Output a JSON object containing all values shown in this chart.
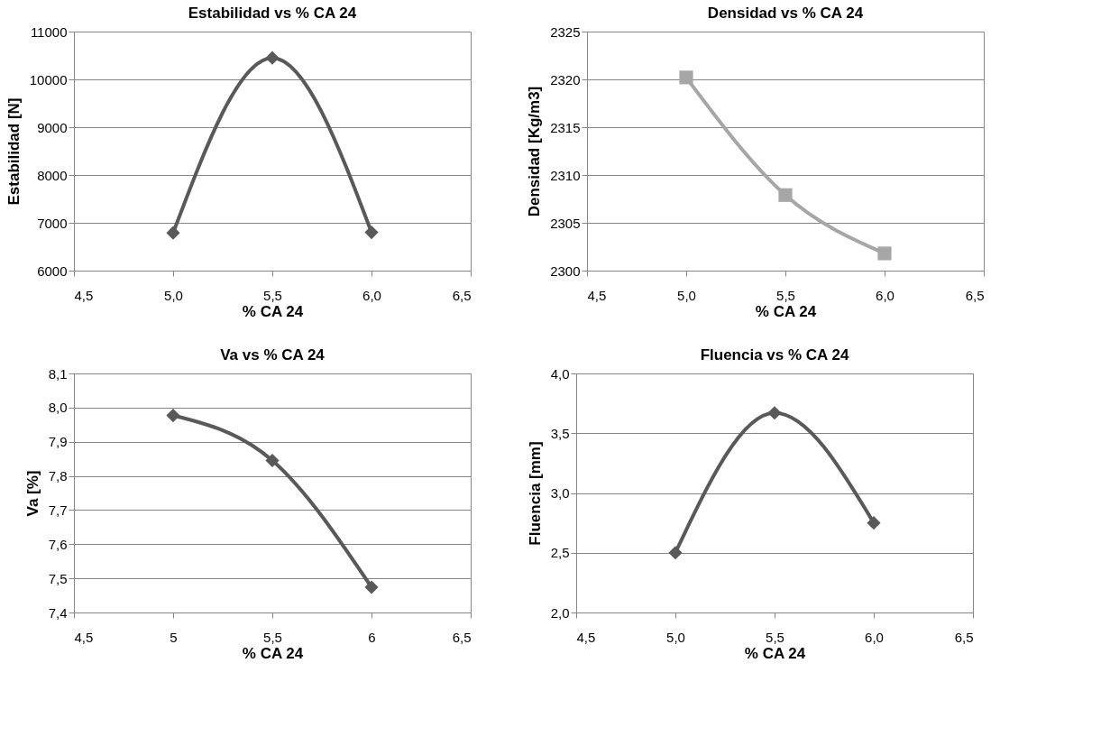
{
  "chart_data": [
    {
      "type": "line",
      "title": "Estabilidad vs % CA 24",
      "xlabel": "% CA 24",
      "ylabel": "Estabilidad [N]",
      "x": [
        5.0,
        5.5,
        6.0
      ],
      "series": [
        {
          "color": "#595959",
          "values": [
            6790,
            10450,
            6800
          ]
        }
      ],
      "xlim": [
        4.5,
        6.5
      ],
      "xticks": [
        {
          "value": 4.5,
          "label": "4,5"
        },
        {
          "value": 5.0,
          "label": "5,0"
        },
        {
          "value": 5.5,
          "label": "5,5"
        },
        {
          "value": 6.0,
          "label": "6,0"
        },
        {
          "value": 6.5,
          "label": "6,5"
        }
      ],
      "ylim": [
        6000,
        11000
      ],
      "yticks": [
        6000,
        7000,
        8000,
        9000,
        10000,
        11000
      ],
      "grid": "y",
      "marker": "diamond",
      "line_style": "solid"
    },
    {
      "type": "line",
      "title": "Densidad vs % CA 24",
      "xlabel": "% CA 24",
      "ylabel": "Densidad [Kg/m3]",
      "x": [
        5.0,
        5.5,
        6.0
      ],
      "series": [
        {
          "color": "#a6a6a6",
          "values": [
            2320.2,
            2307.9,
            2301.8
          ]
        }
      ],
      "xlim": [
        4.5,
        6.5
      ],
      "xticks": [
        {
          "value": 4.5,
          "label": "4,5"
        },
        {
          "value": 5.0,
          "label": "5,0"
        },
        {
          "value": 5.5,
          "label": "5,5"
        },
        {
          "value": 6.0,
          "label": "6,0"
        },
        {
          "value": 6.5,
          "label": "6,5"
        }
      ],
      "ylim": [
        2300,
        2325
      ],
      "yticks": [
        2300,
        2305,
        2310,
        2315,
        2320,
        2325
      ],
      "grid": "y",
      "marker": "square",
      "line_style": "solid"
    },
    {
      "type": "line",
      "title": "Va vs % CA 24",
      "xlabel": "% CA 24",
      "ylabel": "Va [%]",
      "x": [
        5,
        5.5,
        6
      ],
      "series": [
        {
          "color": "#595959",
          "values": [
            7.977,
            7.845,
            7.474
          ]
        }
      ],
      "xlim": [
        4.5,
        6.5
      ],
      "xticks": [
        {
          "value": 4.5,
          "label": "4,5"
        },
        5,
        {
          "value": 5.5,
          "label": "5,5"
        },
        6,
        {
          "value": 6.5,
          "label": "6,5"
        }
      ],
      "ylim": [
        7.4,
        8.1
      ],
      "yticks": [
        {
          "value": 7.4,
          "label": "7,4"
        },
        {
          "value": 7.5,
          "label": "7,5"
        },
        {
          "value": 7.6,
          "label": "7,6"
        },
        {
          "value": 7.7,
          "label": "7,7"
        },
        {
          "value": 7.8,
          "label": "7,8"
        },
        {
          "value": 7.9,
          "label": "7,9"
        },
        {
          "value": 8.0,
          "label": "8,0"
        },
        {
          "value": 8.1,
          "label": "8,1"
        }
      ],
      "grid": "y",
      "marker": "diamond",
      "line_style": "solid"
    },
    {
      "type": "line",
      "title": "Fluencia vs % CA 24",
      "xlabel": "% CA 24",
      "ylabel": "Fluencia [mm]",
      "x": [
        5.0,
        5.5,
        6.0
      ],
      "series": [
        {
          "color": "#595959",
          "values": [
            2.5,
            3.67,
            2.75
          ]
        }
      ],
      "xlim": [
        4.5,
        6.5
      ],
      "xticks": [
        {
          "value": 4.5,
          "label": "4,5"
        },
        {
          "value": 5.0,
          "label": "5,0"
        },
        {
          "value": 5.5,
          "label": "5,5"
        },
        {
          "value": 6.0,
          "label": "6,0"
        },
        {
          "value": 6.5,
          "label": "6,5"
        }
      ],
      "ylim": [
        2.0,
        4.0
      ],
      "yticks": [
        {
          "value": 2.0,
          "label": "2,0"
        },
        {
          "value": 2.5,
          "label": "2,5"
        },
        {
          "value": 3.0,
          "label": "3,0"
        },
        {
          "value": 3.5,
          "label": "3,5"
        },
        {
          "value": 4.0,
          "label": "4,0"
        }
      ],
      "grid": "y",
      "marker": "diamond",
      "line_style": "solid"
    }
  ]
}
